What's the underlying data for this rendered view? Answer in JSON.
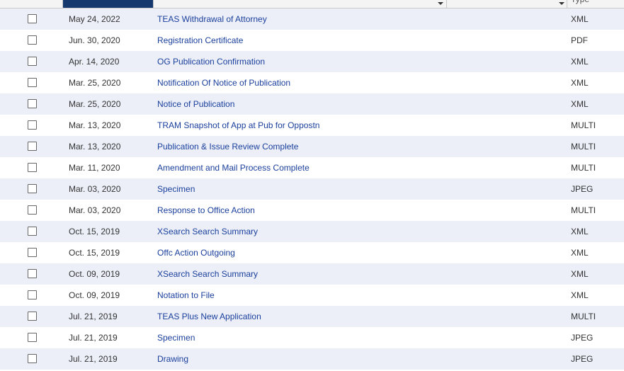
{
  "table": {
    "header": {
      "type": "Type"
    },
    "rows": [
      [
        "May 24, 2022",
        "TEAS Withdrawal of Attorney",
        "XML"
      ],
      [
        "Jun. 30, 2020",
        "Registration Certificate",
        "PDF"
      ],
      [
        "Apr. 14, 2020",
        "OG Publication Confirmation",
        "XML"
      ],
      [
        "Mar. 25, 2020",
        "Notification Of Notice of Publication",
        "XML"
      ],
      [
        "Mar. 25, 2020",
        "Notice of Publication",
        "XML"
      ],
      [
        "Mar. 13, 2020",
        "TRAM Snapshot of App at Pub for Oppostn",
        "MULTI"
      ],
      [
        "Mar. 13, 2020",
        "Publication & Issue Review Complete",
        "MULTI"
      ],
      [
        "Mar. 11, 2020",
        "Amendment and Mail Process Complete",
        "MULTI"
      ],
      [
        "Mar. 03, 2020",
        "Specimen",
        "JPEG"
      ],
      [
        "Mar. 03, 2020",
        "Response to Office Action",
        "MULTI"
      ],
      [
        "Oct. 15, 2019",
        "XSearch Search Summary",
        "XML"
      ],
      [
        "Oct. 15, 2019",
        "Offc Action Outgoing",
        "XML"
      ],
      [
        "Oct. 09, 2019",
        "XSearch Search Summary",
        "XML"
      ],
      [
        "Oct. 09, 2019",
        "Notation to File",
        "XML"
      ],
      [
        "Jul. 21, 2019",
        "TEAS Plus New Application",
        "MULTI"
      ],
      [
        "Jul. 21, 2019",
        "Specimen",
        "JPEG"
      ],
      [
        "Jul. 21, 2019",
        "Drawing",
        "JPEG"
      ]
    ]
  }
}
